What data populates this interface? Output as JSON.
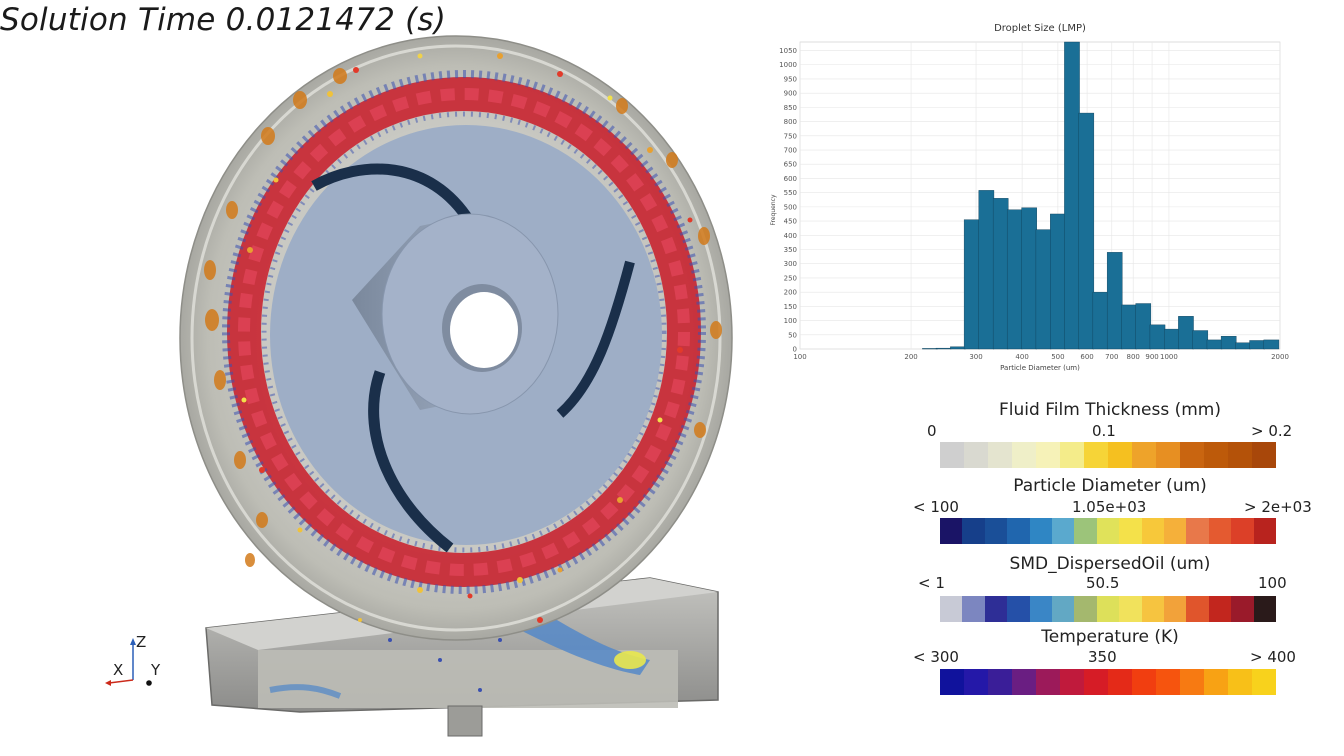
{
  "header": {
    "solution_time": "Solution Time 0.0121472 (s)"
  },
  "axes_triad": {
    "z": "Z",
    "x": "X",
    "y": "Y"
  },
  "chart_data": {
    "type": "bar",
    "title": "Droplet Size (LMP)",
    "xlabel": "Particle Diameter (um)",
    "ylabel": "Frequency",
    "xscale": "log",
    "xlim": [
      100,
      2000
    ],
    "ylim": [
      0,
      1080
    ],
    "x_tick_labels": [
      "100",
      "200",
      "300",
      "400",
      "500",
      "600",
      "700",
      "800",
      "900",
      "1000",
      "2000"
    ],
    "x_tick_values": [
      100,
      200,
      300,
      400,
      500,
      600,
      700,
      800,
      900,
      1000,
      2000
    ],
    "y_tick_labels": [
      "0",
      "50",
      "100",
      "150",
      "200",
      "250",
      "300",
      "350",
      "400",
      "450",
      "500",
      "550",
      "600",
      "650",
      "700",
      "750",
      "800",
      "850",
      "900",
      "950",
      "1000",
      "1050"
    ],
    "grid": true,
    "bars": [
      {
        "x": 225,
        "y": 2
      },
      {
        "x": 245,
        "y": 3
      },
      {
        "x": 268,
        "y": 8
      },
      {
        "x": 292,
        "y": 455
      },
      {
        "x": 320,
        "y": 558
      },
      {
        "x": 350,
        "y": 530
      },
      {
        "x": 382,
        "y": 490
      },
      {
        "x": 418,
        "y": 497
      },
      {
        "x": 457,
        "y": 420
      },
      {
        "x": 500,
        "y": 475
      },
      {
        "x": 546,
        "y": 1080
      },
      {
        "x": 597,
        "y": 830
      },
      {
        "x": 652,
        "y": 200
      },
      {
        "x": 713,
        "y": 340
      },
      {
        "x": 780,
        "y": 155
      },
      {
        "x": 852,
        "y": 160
      },
      {
        "x": 931,
        "y": 85
      },
      {
        "x": 1018,
        "y": 70
      },
      {
        "x": 1112,
        "y": 115
      },
      {
        "x": 1216,
        "y": 65
      },
      {
        "x": 1329,
        "y": 32
      },
      {
        "x": 1452,
        "y": 45
      },
      {
        "x": 1587,
        "y": 22
      },
      {
        "x": 1734,
        "y": 30
      },
      {
        "x": 1895,
        "y": 32
      }
    ],
    "bar_color": "#1a6f96"
  },
  "legends": [
    {
      "title": "Fluid Film Thickness (mm)",
      "min": "0",
      "mid": "0.1",
      "max": "> 0.2",
      "colors": [
        "#cfcfcf",
        "#d9d9d0",
        "#e4e4cf",
        "#efefc8",
        "#f6f2b8",
        "#f4ec8a",
        "#f6d437",
        "#f5c020",
        "#eea32a",
        "#e78f22",
        "#c96510",
        "#bd5a0a",
        "#b45209",
        "#a8470a"
      ]
    },
    {
      "title": "Particle Diameter (um)",
      "min": "< 100",
      "mid": "1.05e+03",
      "max": "> 2e+03",
      "colors": [
        "#1a1466",
        "#163f8a",
        "#1a4f98",
        "#2066ae",
        "#2f86c4",
        "#5aa9ce",
        "#9cc47a",
        "#e0e25a",
        "#f4e14a",
        "#f7c83a",
        "#f5b03a",
        "#e8784a",
        "#e45a30",
        "#dc4028",
        "#b8231e"
      ]
    },
    {
      "title": "SMD_DispersedOil (um)",
      "min": "< 1",
      "mid": "50.5",
      "max": "100",
      "colors": [
        "#c8cad6",
        "#7c86c0",
        "#2e2e96",
        "#2550a8",
        "#3a86c6",
        "#62a8c4",
        "#a4b86e",
        "#dde05a",
        "#f1e25c",
        "#f6c440",
        "#f2a23a",
        "#e0552c",
        "#c2261e",
        "#9a1a2a",
        "#2a1a1a"
      ]
    },
    {
      "title": "Temperature (K)",
      "min": "< 300",
      "mid": "350",
      "max": "> 400",
      "colors": [
        "#10129c",
        "#2418a8",
        "#3a1e98",
        "#6a1e82",
        "#9c1a5a",
        "#c01a3c",
        "#d61c26",
        "#e42a18",
        "#f13e10",
        "#f6540e",
        "#f77a12",
        "#f8a214",
        "#f8c018",
        "#f8d21c"
      ]
    }
  ]
}
